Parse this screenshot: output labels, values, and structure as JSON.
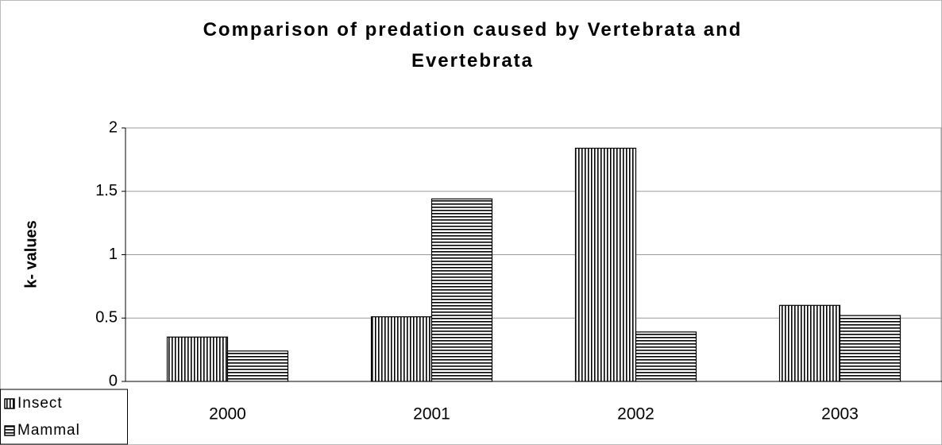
{
  "chart_data": {
    "type": "bar",
    "title": "Comparison of predation caused by Vertebrata and Evertebrata",
    "y_label": "k- values",
    "categories": [
      "2000",
      "2001",
      "2002",
      "2003"
    ],
    "series": [
      {
        "name": "Insect",
        "color": "#000000",
        "hatch": "vertical",
        "values": [
          0.35,
          0.51,
          1.84,
          0.6
        ]
      },
      {
        "name": "Mammal",
        "color": "#000000",
        "hatch": "horizontal",
        "values": [
          0.24,
          1.44,
          0.39,
          0.52
        ]
      }
    ],
    "ylim": [
      0,
      2
    ],
    "yticks": [
      0,
      0.5,
      1,
      1.5,
      2
    ],
    "grid": true,
    "legend": "bottom-left"
  }
}
